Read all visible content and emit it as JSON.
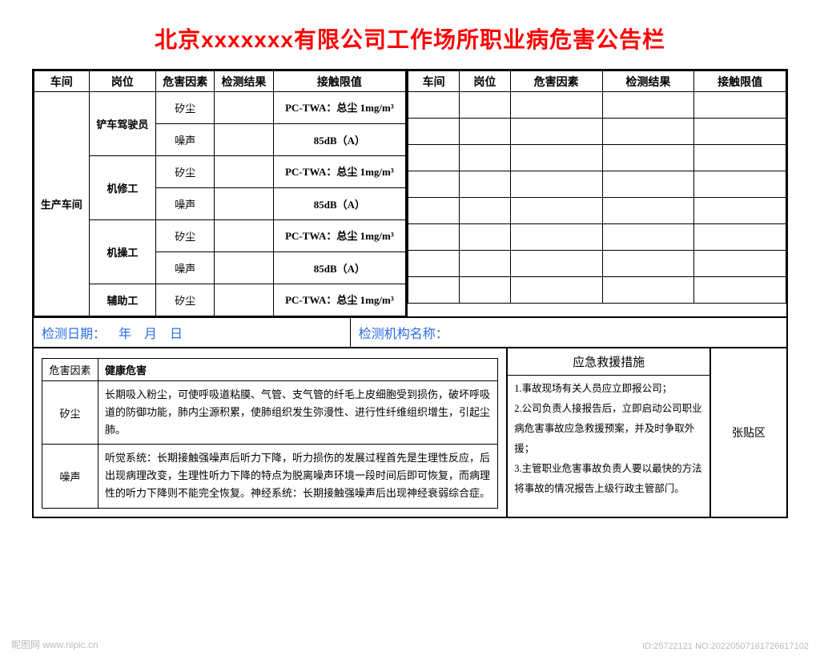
{
  "title": "北京xxxxxxx有限公司工作场所职业病危害公告栏",
  "headers": [
    "车间",
    "岗位",
    "危害因素",
    "检测结果",
    "接触限值"
  ],
  "left_table": {
    "workshop": "生产车间",
    "rows": [
      {
        "position": "铲车驾驶员",
        "hazards": [
          {
            "factor": "矽尘",
            "result": "",
            "limit": "PC-TWA：总尘 1mg/m³"
          },
          {
            "factor": "噪声",
            "result": "",
            "limit": "85dB（A）"
          }
        ]
      },
      {
        "position": "机修工",
        "hazards": [
          {
            "factor": "矽尘",
            "result": "",
            "limit": "PC-TWA：总尘 1mg/m³"
          },
          {
            "factor": "噪声",
            "result": "",
            "limit": "85dB（A）"
          }
        ]
      },
      {
        "position": "机操工",
        "hazards": [
          {
            "factor": "矽尘",
            "result": "",
            "limit": "PC-TWA：总尘 1mg/m³"
          },
          {
            "factor": "噪声",
            "result": "",
            "limit": "85dB（A）"
          }
        ]
      },
      {
        "position": "辅助工",
        "hazards": [
          {
            "factor": "矽尘",
            "result": "",
            "limit": "PC-TWA：总尘 1mg/m³"
          }
        ]
      }
    ]
  },
  "right_table_empty_rows": 8,
  "test_date_label": "检测日期：",
  "test_date_value": "年　月　日",
  "test_org_label": "检测机构名称：",
  "hazard_info": {
    "col1": "危害因素",
    "col2": "健康危害",
    "rows": [
      {
        "factor": "矽尘",
        "desc": "长期吸入粉尘，可使呼吸道粘膜、气管、支气管的纤毛上皮细胞受到损伤，破坏呼吸道的防御功能，肺内尘源积累，使肺组织发生弥漫性、进行性纤维组织增生，引起尘肺。"
      },
      {
        "factor": "噪声",
        "desc": "听觉系统：长期接触强噪声后听力下降，听力损伤的发展过程首先是生理性反应，后出现病理改变，生理性听力下降的特点为脱离噪声环境一段时间后即可恢复，而病理性的听力下降则不能完全恢复。神经系统：长期接触强噪声后出现神经衰弱综合症。"
      }
    ]
  },
  "emergency": {
    "title": "应急救援措施",
    "body": "1.事故现场有关人员应立即报公司；\n2.公司负责人接报告后，立即启动公司职业病危害事故应急救援预案，并及时争取外援；\n3.主管职业危害事故负责人要以最快的方法将事故的情况报告上级行政主管部门。"
  },
  "post_area": "张贴区",
  "watermark_bl": "昵图网  www.nipic.cn",
  "watermark_br": "ID:25722121 NO:20220507161726617102",
  "colors": {
    "title": "#ff0000",
    "info_text": "#2a6ee0",
    "border": "#000000",
    "watermark": "#bbbbbb",
    "background": "#ffffff"
  }
}
